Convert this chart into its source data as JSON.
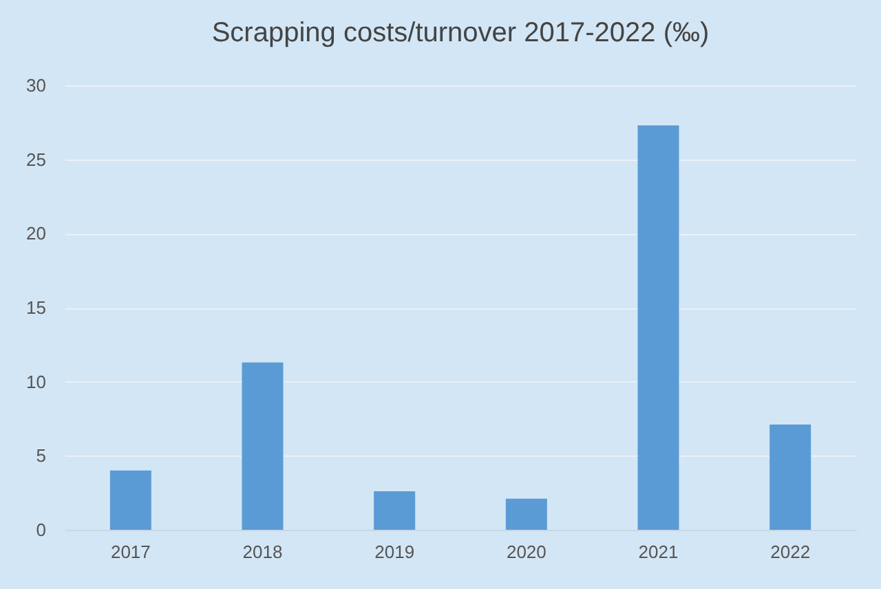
{
  "chart_data": {
    "type": "bar",
    "title": "Scrapping costs/turnover 2017-2022 (‰)",
    "categories": [
      "2017",
      "2018",
      "2019",
      "2020",
      "2021",
      "2022"
    ],
    "values": [
      4.0,
      11.3,
      2.6,
      2.1,
      27.3,
      7.1
    ],
    "color": "#5b9bd5",
    "ylim": [
      0,
      30
    ],
    "yticks": [
      0,
      5,
      10,
      15,
      20,
      25,
      30
    ],
    "grid": true
  }
}
